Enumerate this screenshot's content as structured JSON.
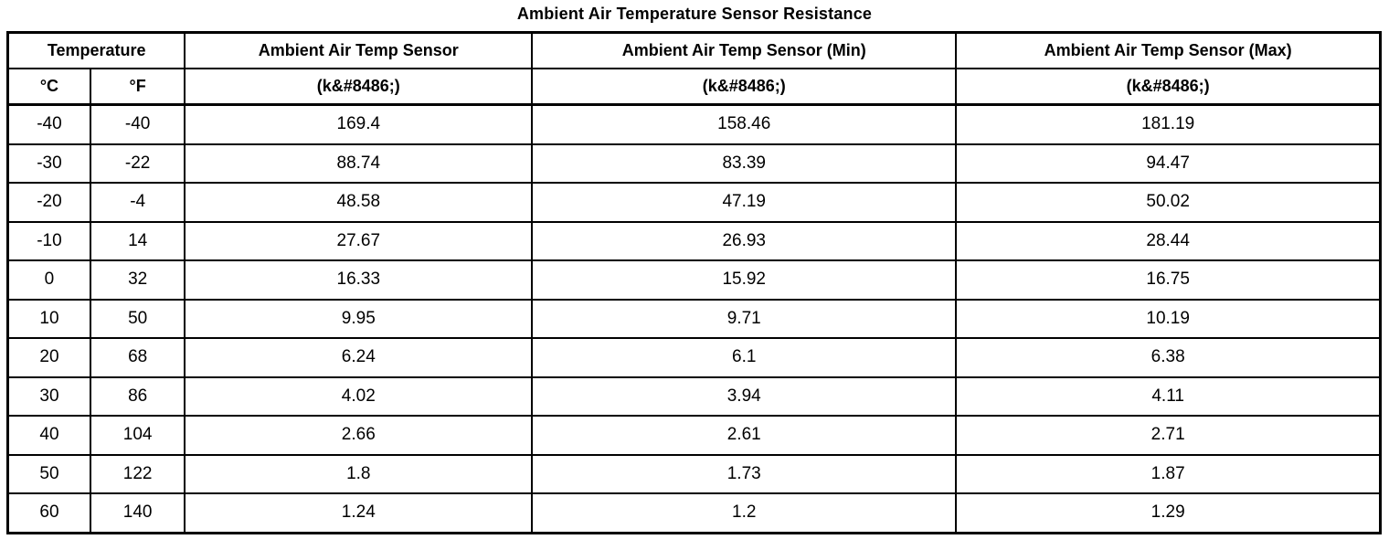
{
  "title": "Ambient Air Temperature Sensor Resistance",
  "table": {
    "header": {
      "temperature_group": "Temperature",
      "celsius": "°C",
      "fahrenheit": "°F",
      "sensor": "Ambient Air Temp Sensor",
      "sensor_min": "Ambient Air Temp Sensor (Min)",
      "sensor_max": "Ambient Air Temp Sensor (Max)",
      "unit": "(k&#8486;)"
    },
    "rows": [
      [
        "-40",
        "-40",
        "169.4",
        "158.46",
        "181.19"
      ],
      [
        "-30",
        "-22",
        "88.74",
        "83.39",
        "94.47"
      ],
      [
        "-20",
        "-4",
        "48.58",
        "47.19",
        "50.02"
      ],
      [
        "-10",
        "14",
        "27.67",
        "26.93",
        "28.44"
      ],
      [
        "0",
        "32",
        "16.33",
        "15.92",
        "16.75"
      ],
      [
        "10",
        "50",
        "9.95",
        "9.71",
        "10.19"
      ],
      [
        "20",
        "68",
        "6.24",
        "6.1",
        "6.38"
      ],
      [
        "30",
        "86",
        "4.02",
        "3.94",
        "4.11"
      ],
      [
        "40",
        "104",
        "2.66",
        "2.61",
        "2.71"
      ],
      [
        "50",
        "122",
        "1.8",
        "1.73",
        "1.87"
      ],
      [
        "60",
        "140",
        "1.24",
        "1.2",
        "1.29"
      ]
    ]
  }
}
